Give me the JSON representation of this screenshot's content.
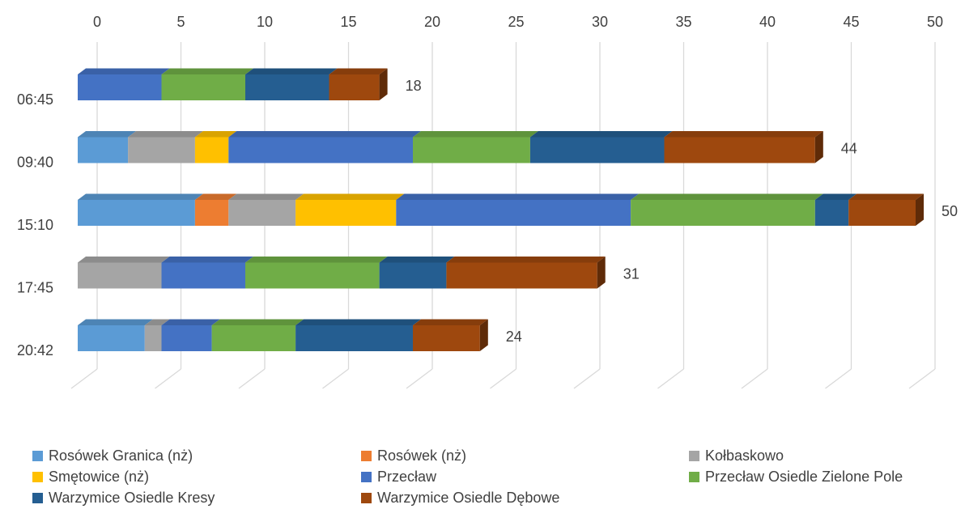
{
  "chart_data": {
    "type": "bar",
    "orientation": "horizontal",
    "stacked": true,
    "style": "3d",
    "title": "",
    "xlabel": "",
    "ylabel": "",
    "xlim": [
      0,
      50
    ],
    "x_ticks": [
      "0",
      "5",
      "10",
      "15",
      "20",
      "25",
      "30",
      "35",
      "40",
      "45",
      "50"
    ],
    "x_axis_position": "top",
    "grid": "vertical",
    "legend_position": "bottom",
    "categories": [
      "06:45",
      "09:40",
      "15:10",
      "17:45",
      "20:42"
    ],
    "series": [
      {
        "name": "Rosówek Granica (nż)",
        "color": "#5B9BD5",
        "values": [
          0,
          3,
          7,
          0,
          4
        ]
      },
      {
        "name": "Rosówek (nż)",
        "color": "#ED7D31",
        "values": [
          0,
          0,
          2,
          0,
          0
        ]
      },
      {
        "name": "Kołbaskowo",
        "color": "#A5A5A5",
        "values": [
          0,
          4,
          4,
          5,
          1
        ]
      },
      {
        "name": "Smętowice (nż)",
        "color": "#FFC000",
        "values": [
          0,
          2,
          6,
          0,
          0
        ]
      },
      {
        "name": "Przecław",
        "color": "#4472C4",
        "values": [
          5,
          11,
          14,
          5,
          3
        ]
      },
      {
        "name": "Przecław Osiedle Zielone Pole",
        "color": "#70AD47",
        "values": [
          5,
          7,
          11,
          8,
          5
        ]
      },
      {
        "name": "Warzymice Osiedle Kresy",
        "color": "#255E91",
        "values": [
          5,
          8,
          2,
          4,
          7
        ]
      },
      {
        "name": "Warzymice Osiedle Dębowe",
        "color": "#9E480E",
        "values": [
          3,
          9,
          4,
          9,
          4
        ]
      }
    ],
    "totals": [
      "18",
      "44",
      "50",
      "31",
      "24"
    ]
  }
}
